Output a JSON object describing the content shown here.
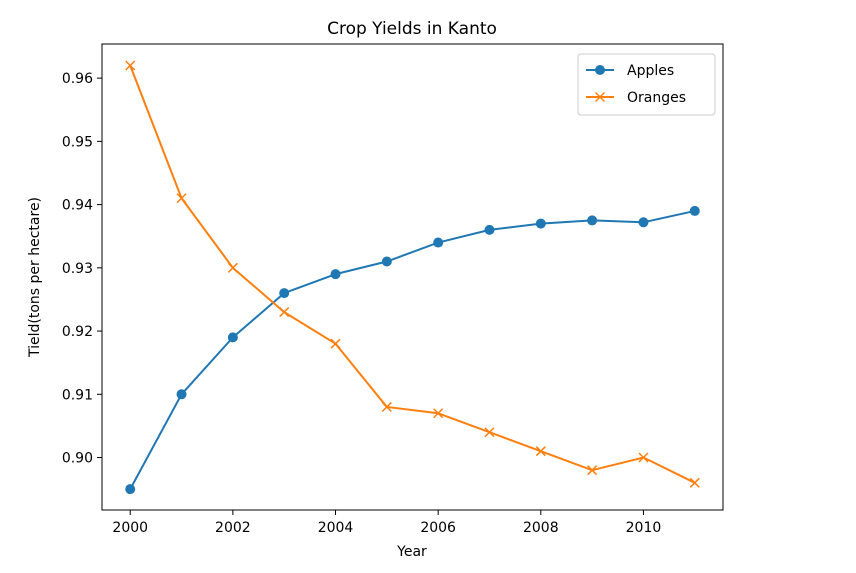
{
  "chart_data": {
    "type": "line",
    "title": "Crop Yields in Kanto",
    "xlabel": "Year",
    "ylabel": "Tield(tons per hectare)",
    "x": [
      2000,
      2001,
      2002,
      2003,
      2004,
      2005,
      2006,
      2007,
      2008,
      2009,
      2010,
      2011
    ],
    "xlim": [
      1999.45,
      2011.55
    ],
    "ylim": [
      0.8917,
      0.9654
    ],
    "xticks": [
      2000,
      2002,
      2004,
      2006,
      2008,
      2010
    ],
    "xtick_labels": [
      "2000",
      "2002",
      "2004",
      "2006",
      "2008",
      "2010"
    ],
    "yticks": [
      0.9,
      0.91,
      0.92,
      0.93,
      0.94,
      0.95,
      0.96
    ],
    "ytick_labels": [
      "0.90",
      "0.91",
      "0.92",
      "0.93",
      "0.94",
      "0.95",
      "0.96"
    ],
    "grid": false,
    "legend_position": "top-right",
    "series": [
      {
        "name": "Apples",
        "color": "#1f77b4",
        "marker": "circle",
        "values": [
          0.895,
          0.91,
          0.919,
          0.926,
          0.929,
          0.931,
          0.934,
          0.936,
          0.937,
          0.9375,
          0.9372,
          0.939
        ]
      },
      {
        "name": "Oranges",
        "color": "#ff7f0e",
        "marker": "x",
        "values": [
          0.962,
          0.941,
          0.93,
          0.923,
          0.918,
          0.908,
          0.907,
          0.904,
          0.901,
          0.898,
          0.9,
          0.896
        ]
      }
    ]
  }
}
